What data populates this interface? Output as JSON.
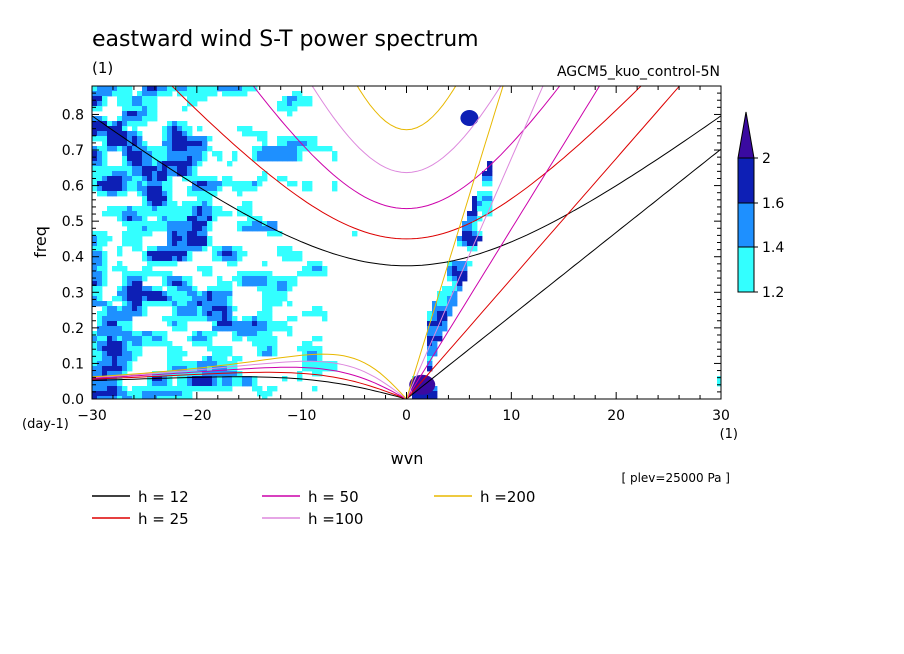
{
  "chart_data": {
    "type": "heatmap",
    "title": "eastward wind S-T power spectrum",
    "subtitle_left": "(1)",
    "subtitle_right": "AGCM5_kuo_control-5N",
    "xlabel": "wvn",
    "ylabel": "freq",
    "x_unit": "(1)",
    "y_unit": "(day-1)",
    "annotation": "[ plev=25000 Pa ]",
    "xlim": [
      -30,
      30
    ],
    "ylim": [
      0.0,
      0.88
    ],
    "x_ticks": [
      -30,
      -20,
      -10,
      0,
      10,
      20,
      30
    ],
    "x_tick_labels": [
      "−30",
      "−20",
      "−10",
      "0",
      "10",
      "20",
      "30"
    ],
    "y_ticks": [
      0.0,
      0.1,
      0.2,
      0.3,
      0.4,
      0.5,
      0.6,
      0.7,
      0.8
    ],
    "y_tick_labels": [
      "0.0",
      "0.1",
      "0.2",
      "0.3",
      "0.4",
      "0.5",
      "0.6",
      "0.7",
      "0.8"
    ],
    "colorbar": {
      "levels": [
        1.2,
        1.4,
        1.6,
        2
      ],
      "labels": [
        "1.2",
        "1.4",
        "1.6",
        "2"
      ],
      "colors": [
        "#33ffff",
        "#1e90ff",
        "#0d1fb5",
        "#3a0aa0"
      ]
    },
    "dispersion_curves": [
      {
        "label": "h = 12",
        "h": 12,
        "color": "#000000"
      },
      {
        "label": "h = 25",
        "h": 25,
        "color": "#dd0000"
      },
      {
        "label": "h = 50",
        "h": 50,
        "color": "#cc00aa"
      },
      {
        "label": "h =100",
        "h": 100,
        "color": "#dd88dd"
      },
      {
        "label": "h =200",
        "h": 200,
        "color": "#e8b800"
      }
    ]
  }
}
